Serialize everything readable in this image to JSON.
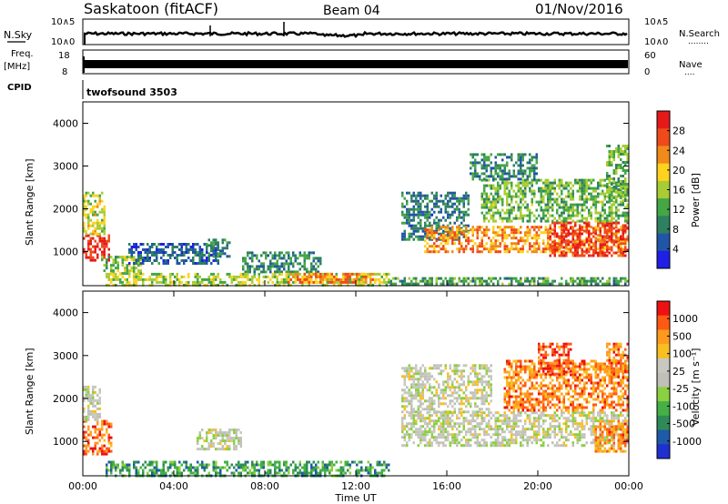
{
  "header": {
    "station": "Saskatoon (fitACF)",
    "beam": "Beam 04",
    "date": "01/Nov/2016"
  },
  "noise_panel": {
    "left_label": "N.Sky",
    "right_label": "N.Search",
    "left_ticks": [
      "10^5",
      "10^0"
    ],
    "right_ticks": [
      "10^5",
      "10^0"
    ],
    "right_legend_dots": "........"
  },
  "freq_panel": {
    "left_label_1": "Freq.",
    "left_label_2": "[MHz]",
    "right_label": "Nave",
    "left_ticks": [
      "18",
      "8"
    ],
    "right_ticks": [
      "60",
      "0"
    ],
    "right_legend_dots": "...."
  },
  "cpid_panel": {
    "label": "CPID",
    "value": "twofsound 3503"
  },
  "colors": {
    "power_scale": [
      "#1f1fe6",
      "#2155a8",
      "#2e8060",
      "#44a644",
      "#a8cc33",
      "#ffd21f",
      "#f08a1a",
      "#f04a1a",
      "#e61919"
    ],
    "velocity_scale": [
      "#ee1111",
      "#ff5a14",
      "#ff9a1f",
      "#f7c020",
      "#c8c8c0",
      "#c0c0b8",
      "#8ad040",
      "#45b045",
      "#2e8b57",
      "#1e5aa8",
      "#1f2fd0"
    ]
  },
  "chart_data": [
    {
      "type": "heatmap",
      "name": "power",
      "xlabel": "",
      "ylabel": "Slant Range [km]",
      "y_ticks": [
        "1000",
        "2000",
        "3000",
        "4000"
      ],
      "ylim": [
        200,
        4500
      ],
      "xlim_hours": [
        0,
        24
      ],
      "colorbar": {
        "label": "Power [dB]",
        "ticks": [
          "4",
          "8",
          "12",
          "16",
          "20",
          "24",
          "28"
        ],
        "range": [
          0,
          30
        ]
      },
      "regions": [
        {
          "t0": 0.0,
          "t1": 1.2,
          "r0": 800,
          "r1": 1400,
          "level": 0.92
        },
        {
          "t0": 0.0,
          "t1": 1.0,
          "r0": 1400,
          "r1": 2400,
          "level": 0.55
        },
        {
          "t0": 0.8,
          "t1": 2.6,
          "r0": 500,
          "r1": 900,
          "level": 0.45
        },
        {
          "t0": 2.0,
          "t1": 6.0,
          "r0": 700,
          "r1": 1200,
          "level": 0.2
        },
        {
          "t0": 5.5,
          "t1": 6.5,
          "r0": 900,
          "r1": 1300,
          "level": 0.25
        },
        {
          "t0": 7.0,
          "t1": 10.5,
          "r0": 500,
          "r1": 1000,
          "level": 0.3
        },
        {
          "t0": 1.0,
          "t1": 13.5,
          "r0": 230,
          "r1": 500,
          "level": 0.5
        },
        {
          "t0": 9.0,
          "t1": 13.0,
          "r0": 250,
          "r1": 500,
          "level": 0.75
        },
        {
          "t0": 13.5,
          "t1": 24.0,
          "r0": 220,
          "r1": 400,
          "level": 0.35
        },
        {
          "t0": 14.0,
          "t1": 17.0,
          "r0": 1300,
          "r1": 2400,
          "level": 0.25
        },
        {
          "t0": 15.0,
          "t1": 24.0,
          "r0": 1000,
          "r1": 1600,
          "level": 0.72
        },
        {
          "t0": 20.5,
          "t1": 24.0,
          "r0": 900,
          "r1": 1700,
          "level": 0.88
        },
        {
          "t0": 17.5,
          "t1": 24.0,
          "r0": 1700,
          "r1": 2700,
          "level": 0.42
        },
        {
          "t0": 17.0,
          "t1": 20.0,
          "r0": 2700,
          "r1": 3300,
          "level": 0.3
        },
        {
          "t0": 23.0,
          "t1": 24.0,
          "r0": 2200,
          "r1": 3500,
          "level": 0.4
        }
      ]
    },
    {
      "type": "heatmap",
      "name": "velocity",
      "xlabel": "Time UT",
      "ylabel": "Slant Range [km]",
      "y_ticks": [
        "1000",
        "2000",
        "3000",
        "4000"
      ],
      "ylim": [
        200,
        4500
      ],
      "xlim_hours": [
        0,
        24
      ],
      "x_ticks": [
        "00:00",
        "04:00",
        "08:00",
        "12:00",
        "16:00",
        "20:00",
        "00:00"
      ],
      "colorbar": {
        "label": "Velocity [m s⁻¹]",
        "ticks": [
          "1000",
          "500",
          "100",
          "25",
          "-25",
          "-100",
          "-500",
          "-1000"
        ]
      },
      "regions": [
        {
          "t0": 0.0,
          "t1": 1.3,
          "r0": 700,
          "r1": 1500,
          "level": 0.15
        },
        {
          "t0": 0.0,
          "t1": 0.8,
          "r0": 1500,
          "r1": 2300,
          "level": 0.45
        },
        {
          "t0": 1.0,
          "t1": 13.5,
          "r0": 230,
          "r1": 550,
          "level": 0.72
        },
        {
          "t0": 5.0,
          "t1": 7.0,
          "r0": 800,
          "r1": 1300,
          "level": 0.47
        },
        {
          "t0": 14.0,
          "t1": 24.0,
          "r0": 900,
          "r1": 1700,
          "level": 0.47
        },
        {
          "t0": 14.0,
          "t1": 18.0,
          "r0": 1700,
          "r1": 2800,
          "level": 0.46
        },
        {
          "t0": 18.5,
          "t1": 24.0,
          "r0": 1700,
          "r1": 2900,
          "level": 0.2
        },
        {
          "t0": 20.0,
          "t1": 21.5,
          "r0": 2600,
          "r1": 3300,
          "level": 0.12
        },
        {
          "t0": 22.5,
          "t1": 24.0,
          "r0": 800,
          "r1": 1500,
          "level": 0.22
        },
        {
          "t0": 23.0,
          "t1": 24.0,
          "r0": 2500,
          "r1": 3300,
          "level": 0.18
        }
      ]
    }
  ]
}
